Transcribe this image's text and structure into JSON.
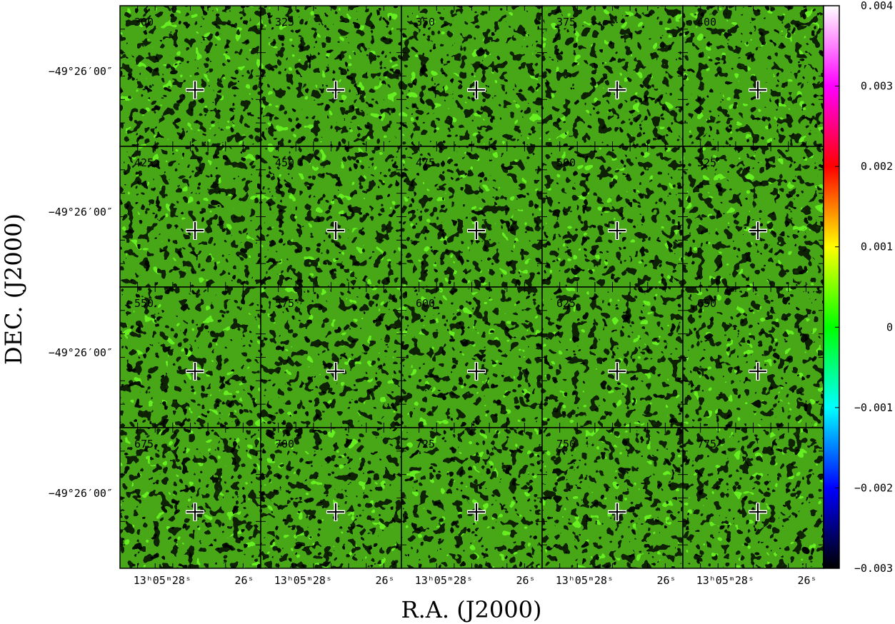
{
  "chart_data": {
    "type": "heatmap",
    "xlabel": "R.A. (J2000)",
    "ylabel": "DEC. (J2000)",
    "panel_labels": [
      "300",
      "325",
      "350",
      "375",
      "400",
      "425",
      "450",
      "475",
      "500",
      "525",
      "550",
      "575",
      "600",
      "625",
      "650",
      "675",
      "700",
      "725",
      "750",
      "775"
    ],
    "ytick_label": "−49°26′00″",
    "xtick_labels": [
      {
        "major": "13ʰ05ᵐ28ˢ",
        "minor": "26ˢ"
      },
      {
        "major": "13ʰ05ᵐ28ˢ",
        "minor": "26ˢ"
      },
      {
        "major": "13ʰ05ᵐ28ˢ",
        "minor": "26ˢ"
      },
      {
        "major": "13ʰ05ᵐ28ˢ",
        "minor": "26ˢ"
      },
      {
        "major": "13ʰ05ᵐ28ˢ",
        "minor": "26ˢ"
      }
    ],
    "colorbar": {
      "min": -0.003,
      "max": 0.004,
      "ticks": [
        "0.004",
        "0.003",
        "0.002",
        "0.001",
        "0",
        "−0.001",
        "−0.002",
        "−0.003"
      ],
      "tick_values": [
        0.004,
        0.003,
        0.002,
        0.001,
        0,
        -0.001,
        -0.002,
        -0.003
      ],
      "colors": [
        "#000000",
        "#0000ff",
        "#00ffff",
        "#00ff00",
        "#ffff00",
        "#ff0000",
        "#ff00ff",
        "#ffffff"
      ]
    },
    "grid": {
      "rows": 4,
      "cols": 5
    },
    "marker": "cross",
    "beam": "ellipse"
  }
}
